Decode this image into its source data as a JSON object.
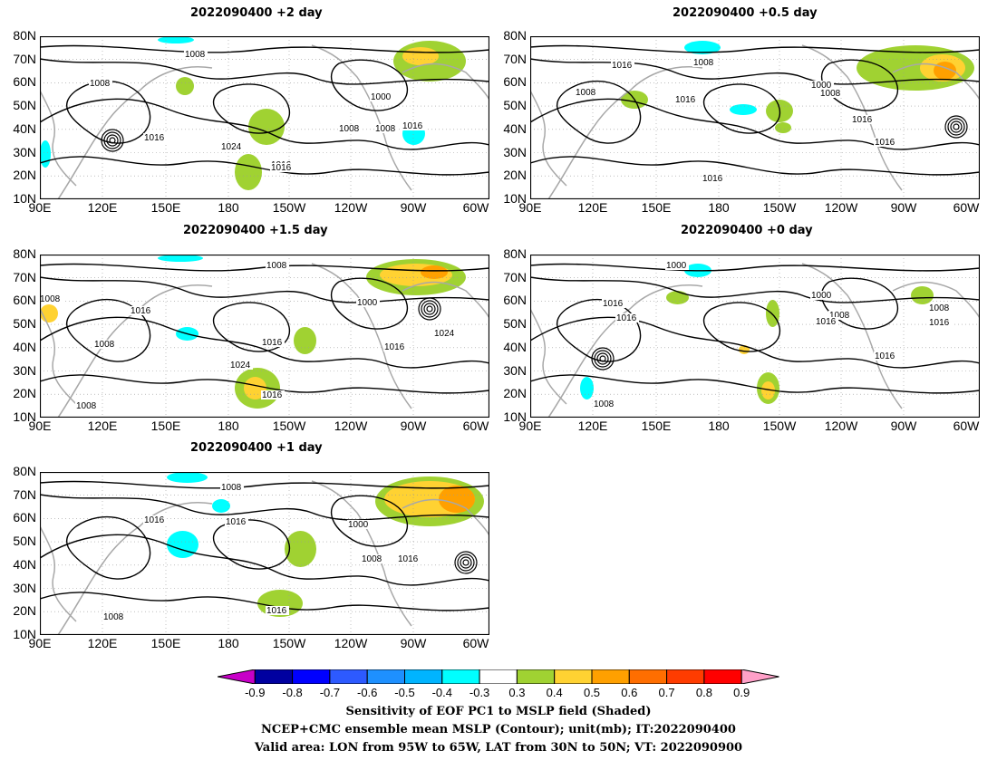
{
  "panels": [
    {
      "title": "2022090400 +2 day"
    },
    {
      "title": "2022090400 +0.5 day"
    },
    {
      "title": "2022090400 +1.5 day"
    },
    {
      "title": "2022090400 +0 day"
    },
    {
      "title": "2022090400 +1 day"
    }
  ],
  "axes": {
    "lat_labels": [
      "80N",
      "70N",
      "60N",
      "50N",
      "40N",
      "30N",
      "20N",
      "10N"
    ],
    "lon_labels": [
      "90E",
      "120E",
      "150E",
      "180",
      "150W",
      "120W",
      "90W",
      "60W"
    ]
  },
  "contour_labels": {
    "p0": [
      "1008",
      "1008",
      "1016",
      "1016",
      "1024",
      "1016",
      "1008",
      "1000",
      "1008",
      "1016"
    ],
    "p1": [
      "1016",
      "1008",
      "1008",
      "1016",
      "1000",
      "1008",
      "1016",
      "1016",
      "1016"
    ],
    "p2": [
      "1008",
      "1016",
      "1008",
      "1008",
      "1016",
      "1024",
      "1016",
      "1000",
      "1016",
      "1024",
      "1008"
    ],
    "p3": [
      "1000",
      "1016",
      "1016",
      "1000",
      "1008",
      "1016",
      "1008",
      "1016",
      "1016",
      "1008"
    ],
    "p4": [
      "1008",
      "1016",
      "1016",
      "1000",
      "1008",
      "1016",
      "1016",
      "1008"
    ]
  },
  "colorbar": {
    "levels": [
      "-0.9",
      "-0.8",
      "-0.7",
      "-0.6",
      "-0.5",
      "-0.4",
      "-0.3",
      "0.3",
      "0.4",
      "0.5",
      "0.6",
      "0.7",
      "0.8",
      "0.9"
    ],
    "colors": [
      "#c800c8",
      "#0000a0",
      "#0000ff",
      "#2d5aff",
      "#1e90ff",
      "#00b4ff",
      "#00ffff",
      "#ffffff",
      "#a0d232",
      "#ffd232",
      "#ffa000",
      "#ff6e00",
      "#ff3c00",
      "#ff0000",
      "#ffa0c8"
    ]
  },
  "captions": [
    "Sensitivity of EOF PC1 to MSLP field (Shaded)",
    "NCEP+CMC ensemble mean MSLP (Contour); unit(mb); IT:2022090400",
    "Valid area: LON from 95W to 65W, LAT from 30N to 50N; VT: 2022090900"
  ]
}
